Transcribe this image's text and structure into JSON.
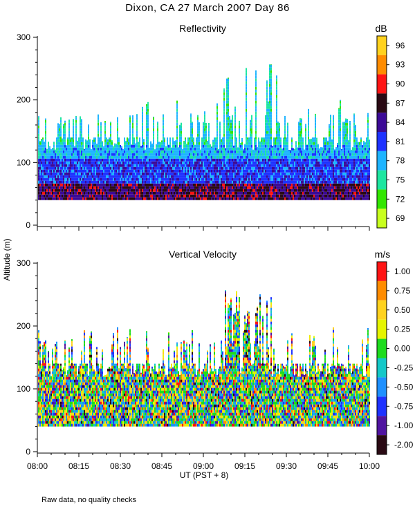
{
  "page_title": "Dixon, CA 27 March 2007  Day  86",
  "ylabel": "Altitude (m)",
  "xlabel": "UT  (PST + 8)",
  "footnote": "Raw data, no quality checks",
  "x_ticks": [
    "08:00",
    "08:15",
    "08:30",
    "08:45",
    "09:00",
    "09:15",
    "09:30",
    "09:45",
    "10:00"
  ],
  "y_ticks": [
    "0",
    "100",
    "200",
    "300"
  ],
  "chart_data": [
    {
      "type": "heatmap",
      "title": "Reflectivity",
      "colorbar_unit": "dB",
      "colorbar_labels": [
        "96",
        "93",
        "90",
        "87",
        "84",
        "81",
        "78",
        "75",
        "72",
        "69"
      ],
      "colors": [
        "#ffd21e",
        "#ff8c00",
        "#ff1414",
        "#2a0a14",
        "#3c0a96",
        "#1e32ff",
        "#1eb4ff",
        "#1ee6a0",
        "#32e600",
        "#c8ff1e"
      ],
      "xlim": [
        "08:00",
        "10:00"
      ],
      "ylim": [
        0,
        300
      ],
      "data_bottom_m": 40,
      "typical_top_m": 140,
      "max_top_m": 260
    },
    {
      "type": "heatmap",
      "title": "Vertical Velocity",
      "colorbar_unit": "m/s",
      "colorbar_labels": [
        "1.00",
        "0.75",
        "0.50",
        "0.25",
        "0.00",
        "-0.25",
        "-0.50",
        "-0.75",
        "-1.00",
        "-2.00"
      ],
      "colors": [
        "#ff1414",
        "#ff8c00",
        "#ffd21e",
        "#e6f500",
        "#1edc1e",
        "#14c8c8",
        "#1e90ff",
        "#1e32ff",
        "#5014a0",
        "#2a0a14"
      ],
      "xlim": [
        "08:00",
        "10:00"
      ],
      "ylim": [
        0,
        300
      ],
      "data_bottom_m": 40,
      "typical_top_m": 140,
      "max_top_m": 260
    }
  ]
}
